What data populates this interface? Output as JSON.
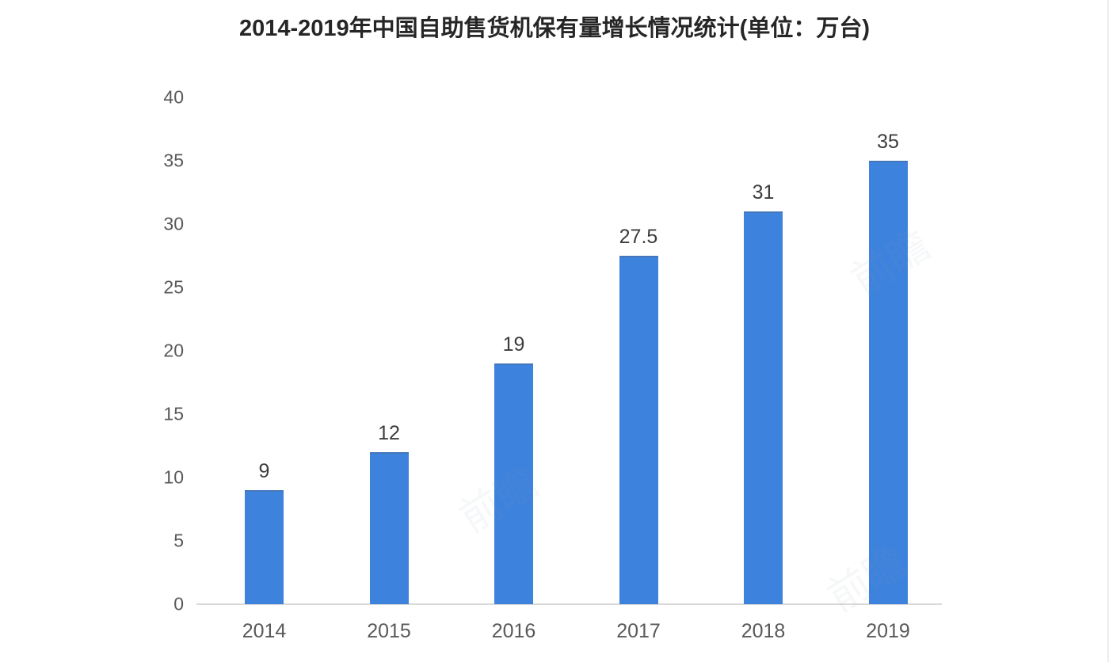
{
  "chart_data": {
    "type": "bar",
    "title": "2014-2019年中国自助售货机保有量增长情况统计(单位：万台)",
    "categories": [
      "2014",
      "2015",
      "2016",
      "2017",
      "2018",
      "2019"
    ],
    "values": [
      9,
      12,
      19,
      27.5,
      31,
      35
    ],
    "value_labels": [
      "9",
      "12",
      "19",
      "27.5",
      "31",
      "35"
    ],
    "xlabel": "",
    "ylabel": "",
    "ylim": [
      0,
      40
    ],
    "yticks": [
      0,
      5,
      10,
      15,
      20,
      25,
      30,
      35,
      40
    ],
    "grid": false,
    "legend_position": "none",
    "bar_color": "#3d82dd"
  },
  "colors": {
    "bar": "#3d82dd",
    "bar_top_edge": "#4377b9",
    "title_text": "#262626",
    "tick_text": "#595959",
    "value_text": "#3d3d3d",
    "axis_line": "#d9d9d9",
    "background": "#ffffff"
  },
  "watermark": {
    "text": "前瞻",
    "positions_note": "faint diagonal marks over plot"
  }
}
